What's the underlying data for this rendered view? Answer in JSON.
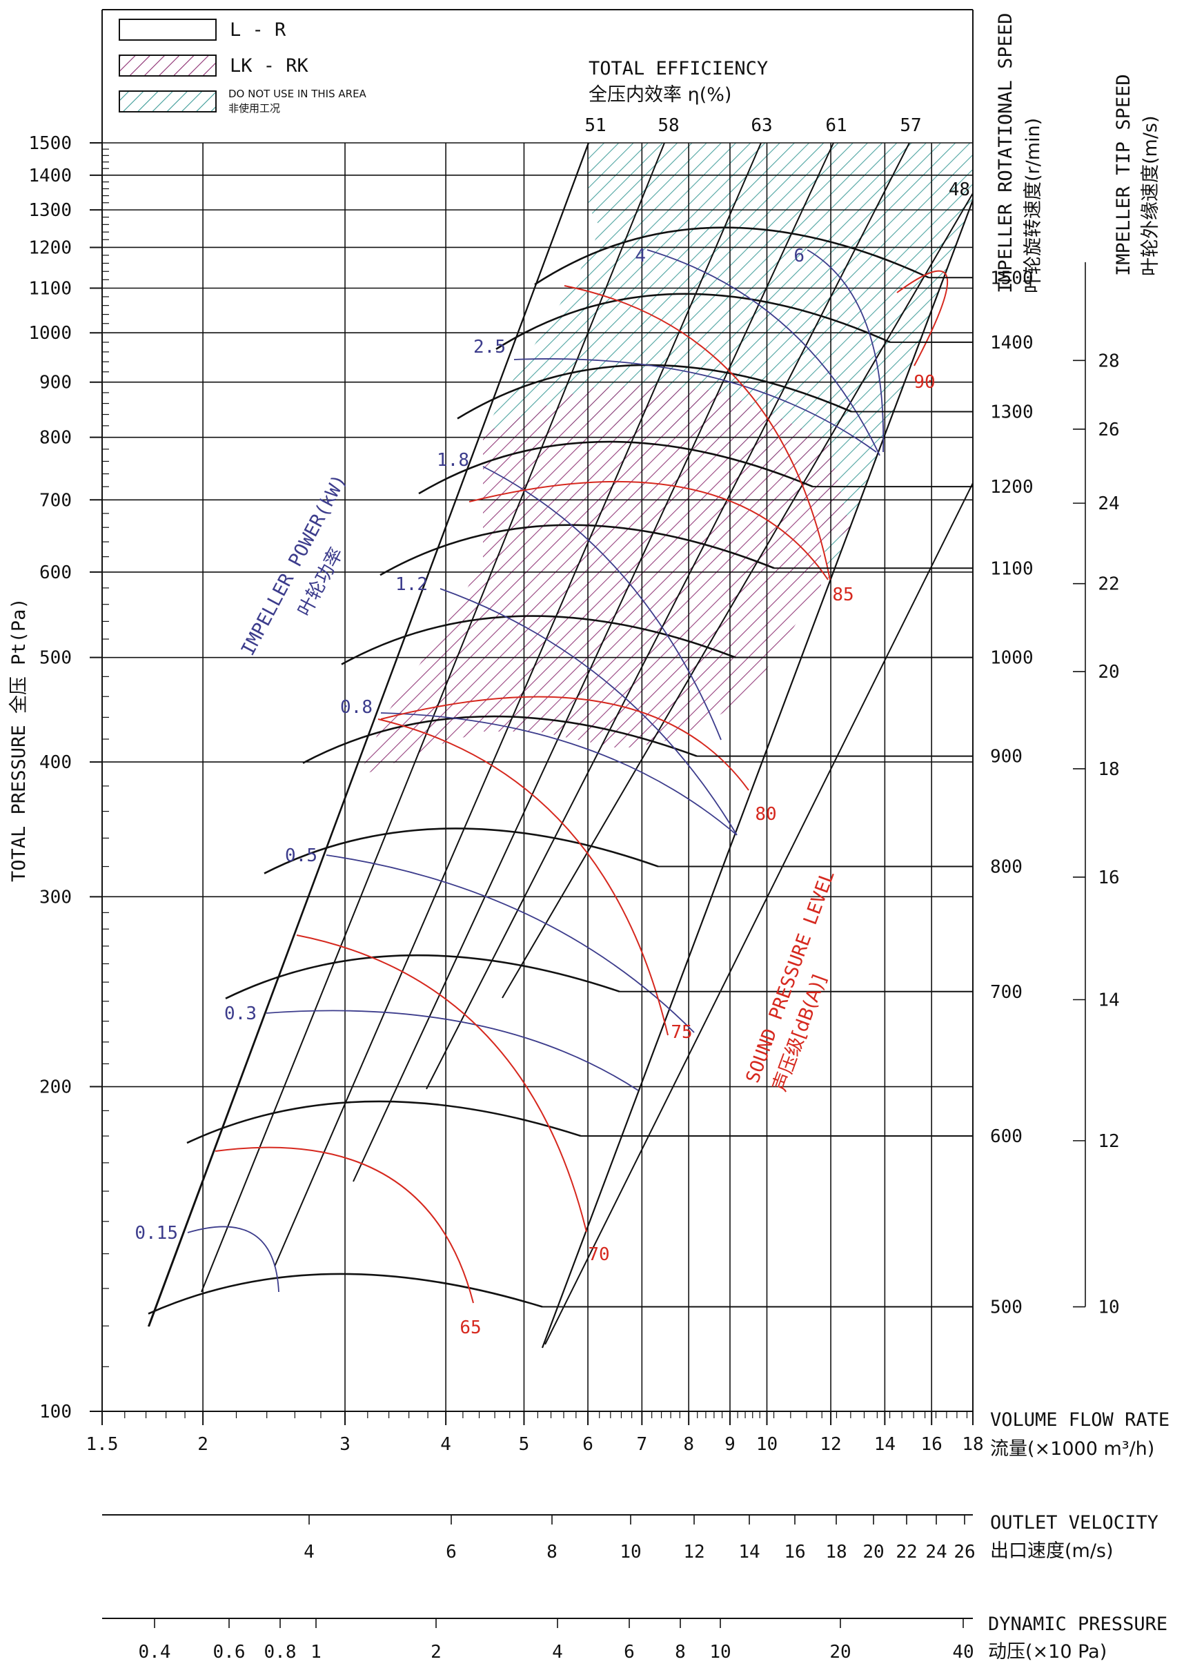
{
  "chart_data": {
    "type": "line",
    "legend": {
      "placement": "top-left",
      "items": [
        {
          "label": "L - R",
          "style": "outline"
        },
        {
          "label": "LK - RK",
          "style": "hatch-magenta"
        },
        {
          "label": "DO NOT USE IN THIS AREA",
          "label_cn": "非使用工况",
          "style": "hatch-teal"
        }
      ]
    },
    "colors": {
      "axis": "#111111",
      "speed": "#111111",
      "power": "#3c3c8c",
      "sound": "#d6281e",
      "hatch_lk": "#8a2a6e",
      "hatch_no": "#3a9a96"
    },
    "efficiency": {
      "title_en": "TOTAL EFFICIENCY",
      "title_cn": "全压内效率  η(%)",
      "labels": [
        "51",
        "58",
        "63",
        "61",
        "57",
        "48"
      ]
    },
    "y_axis": {
      "label": "TOTAL PRESSURE 全压 Pt(Pa)",
      "scale": "log",
      "range": [
        100,
        1500
      ],
      "ticks": [
        "100",
        "200",
        "300",
        "400",
        "500",
        "600",
        "700",
        "800",
        "900",
        "1000",
        "1100",
        "1200",
        "1300",
        "1400",
        "1500"
      ]
    },
    "x_axis": {
      "label_en": "VOLUME FLOW RATE",
      "label_cn": "流量(×1000 m³/h)",
      "scale": "log",
      "range": [
        1.5,
        18
      ],
      "ticks": [
        "1.5",
        "2",
        "3",
        "4",
        "5",
        "6",
        "7",
        "8",
        "9",
        "10",
        "12",
        "14",
        "16",
        "18"
      ]
    },
    "outlet_velocity": {
      "label_en": "OUTLET VELOCITY",
      "label_cn": "出口速度(m/s)",
      "ticks": [
        "4",
        "6",
        "8",
        "10",
        "12",
        "14",
        "16",
        "18",
        "20",
        "22",
        "24",
        "26"
      ]
    },
    "dynamic_pressure": {
      "label_en": "DYNAMIC PRESSURE",
      "label_cn": "动压(×10 Pa)",
      "ticks": [
        "0.4",
        "0.6",
        "0.8",
        "1",
        "2",
        "4",
        "6",
        "8",
        "10",
        "20",
        "40"
      ]
    },
    "rotational_speed": {
      "label_en": "IMPELLER ROTATIONAL SPEED",
      "label_cn": "叶轮旋转速度(r/min)",
      "values": [
        "500",
        "600",
        "700",
        "800",
        "900",
        "1000",
        "1100",
        "1200",
        "1300",
        "1400",
        "1500"
      ]
    },
    "tip_speed": {
      "label_en": "IMPELLER TIP SPEED",
      "label_cn": "叶轮外缘速度(m/s)",
      "ticks": [
        "10",
        "12",
        "14",
        "16",
        "18",
        "20",
        "22",
        "24",
        "26",
        "28"
      ]
    },
    "impeller_power": {
      "label_en": "IMPELLER POWER(kW)",
      "label_cn": "叶轮功率",
      "labels": [
        "0.15",
        "0.3",
        "0.5",
        "0.8",
        "1.2",
        "1.8",
        "2.5",
        "4",
        "6"
      ]
    },
    "sound_pressure": {
      "label_en": "SOUND PRESSURE LEVEL",
      "label_cn": "声压级[dB(A)]",
      "labels": [
        "65",
        "70",
        "75",
        "80",
        "85",
        "90"
      ]
    }
  }
}
